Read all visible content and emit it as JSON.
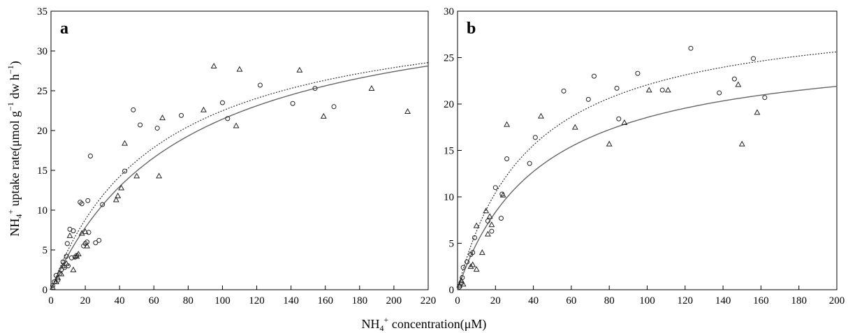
{
  "figure": {
    "ylabel_main": "NH",
    "ylabel_sub": "4",
    "ylabel_sup": "+",
    "ylabel_rest": " uptake rate(μmol g",
    "ylabel_exp": "−1",
    "ylabel_tail": " dw h",
    "ylabel_exp2": "−1",
    "ylabel_close": ")",
    "xlabel_main": "NH",
    "xlabel_sub": "4",
    "xlabel_sup": "+",
    "xlabel_rest": " concentration(μM)"
  },
  "chart_data": [
    {
      "type": "scatter",
      "panel_label": "a",
      "xlim": [
        0,
        220
      ],
      "ylim": [
        0,
        35
      ],
      "xticks": [
        0,
        20,
        40,
        60,
        80,
        100,
        120,
        140,
        160,
        180,
        200,
        220
      ],
      "yticks": [
        0,
        5,
        10,
        15,
        20,
        25,
        30,
        35
      ],
      "grid": false,
      "series": [
        {
          "marker": "circle",
          "points": [
            [
              1,
              0.5
            ],
            [
              2,
              1.0
            ],
            [
              3,
              1.8
            ],
            [
              4,
              1.2
            ],
            [
              5,
              2.0
            ],
            [
              6,
              2.5
            ],
            [
              7,
              3.5
            ],
            [
              8,
              2.8
            ],
            [
              9,
              4.2
            ],
            [
              9.5,
              5.8
            ],
            [
              10,
              3.0
            ],
            [
              11,
              7.6
            ],
            [
              12,
              4.0
            ],
            [
              13,
              7.4
            ],
            [
              14,
              4.1
            ],
            [
              15,
              4.3
            ],
            [
              17,
              11.0
            ],
            [
              18,
              10.8
            ],
            [
              19,
              5.5
            ],
            [
              20,
              5.8
            ],
            [
              21,
              6.0
            ],
            [
              21.5,
              11.2
            ],
            [
              22,
              7.2
            ],
            [
              23,
              16.8
            ],
            [
              26,
              5.9
            ],
            [
              28,
              6.2
            ],
            [
              30,
              10.7
            ],
            [
              43,
              14.9
            ],
            [
              48,
              22.6
            ],
            [
              52,
              20.7
            ],
            [
              62,
              20.3
            ],
            [
              76,
              21.9
            ],
            [
              100,
              23.5
            ],
            [
              103,
              21.5
            ],
            [
              122,
              25.7
            ],
            [
              141,
              23.4
            ],
            [
              154,
              25.3
            ],
            [
              165,
              23.0
            ]
          ]
        },
        {
          "marker": "triangle",
          "points": [
            [
              1,
              0.3
            ],
            [
              3,
              1.0
            ],
            [
              4,
              1.5
            ],
            [
              6,
              2.0
            ],
            [
              7,
              3.0
            ],
            [
              9,
              3.3
            ],
            [
              11,
              6.8
            ],
            [
              13,
              2.5
            ],
            [
              15,
              4.2
            ],
            [
              16,
              4.5
            ],
            [
              18,
              7.1
            ],
            [
              20,
              7.3
            ],
            [
              21,
              5.5
            ],
            [
              38,
              11.3
            ],
            [
              39,
              11.8
            ],
            [
              41,
              12.8
            ],
            [
              43,
              18.4
            ],
            [
              50,
              14.3
            ],
            [
              63,
              14.3
            ],
            [
              65,
              21.6
            ],
            [
              89,
              22.6
            ],
            [
              95,
              28.1
            ],
            [
              108,
              20.6
            ],
            [
              110,
              27.7
            ],
            [
              145,
              27.6
            ],
            [
              159,
              21.8
            ],
            [
              187,
              25.3
            ],
            [
              208,
              22.4
            ]
          ]
        }
      ],
      "curves": [
        {
          "style": "dotted",
          "vmax": 36.77,
          "km": 63.5
        },
        {
          "style": "solid",
          "vmax": 38.01,
          "km": 77.4
        }
      ]
    },
    {
      "type": "scatter",
      "panel_label": "b",
      "xlim": [
        0,
        200
      ],
      "ylim": [
        0,
        30
      ],
      "xticks": [
        0,
        20,
        40,
        60,
        80,
        100,
        120,
        140,
        160,
        180,
        200
      ],
      "yticks": [
        0,
        5,
        10,
        15,
        20,
        25,
        30
      ],
      "grid": false,
      "series": [
        {
          "marker": "circle",
          "points": [
            [
              1,
              0.3
            ],
            [
              2,
              0.7
            ],
            [
              2.5,
              1.3
            ],
            [
              3,
              2.4
            ],
            [
              5,
              3.0
            ],
            [
              7,
              3.8
            ],
            [
              8,
              4.0
            ],
            [
              9,
              5.6
            ],
            [
              16,
              7.4
            ],
            [
              18,
              6.3
            ],
            [
              20,
              11.0
            ],
            [
              23,
              7.7
            ],
            [
              23.5,
              10.3
            ],
            [
              26,
              14.1
            ],
            [
              38,
              13.6
            ],
            [
              41,
              16.4
            ],
            [
              56,
              21.4
            ],
            [
              69,
              20.5
            ],
            [
              72,
              23.0
            ],
            [
              84,
              21.7
            ],
            [
              85,
              18.4
            ],
            [
              95,
              23.3
            ],
            [
              108,
              21.5
            ],
            [
              123,
              26.0
            ],
            [
              138,
              21.2
            ],
            [
              146,
              22.7
            ],
            [
              156,
              24.9
            ],
            [
              162,
              20.7
            ]
          ]
        },
        {
          "marker": "triangle",
          "points": [
            [
              1,
              0.5
            ],
            [
              2,
              1.0
            ],
            [
              3,
              0.6
            ],
            [
              7,
              2.5
            ],
            [
              8,
              2.7
            ],
            [
              10,
              2.2
            ],
            [
              10,
              6.9
            ],
            [
              13,
              4.0
            ],
            [
              15,
              8.5
            ],
            [
              16,
              6.0
            ],
            [
              17,
              7.9
            ],
            [
              18,
              7.0
            ],
            [
              24,
              10.2
            ],
            [
              26,
              17.8
            ],
            [
              44,
              18.7
            ],
            [
              62,
              17.5
            ],
            [
              80,
              15.7
            ],
            [
              88,
              18.0
            ],
            [
              101,
              21.5
            ],
            [
              111,
              21.5
            ],
            [
              148,
              22.1
            ],
            [
              150,
              15.7
            ],
            [
              158,
              19.1
            ]
          ]
        }
      ],
      "curves": [
        {
          "style": "dotted",
          "vmax": 30.55,
          "km": 38.5
        },
        {
          "style": "solid",
          "vmax": 26.72,
          "km": 44.0
        }
      ]
    }
  ]
}
